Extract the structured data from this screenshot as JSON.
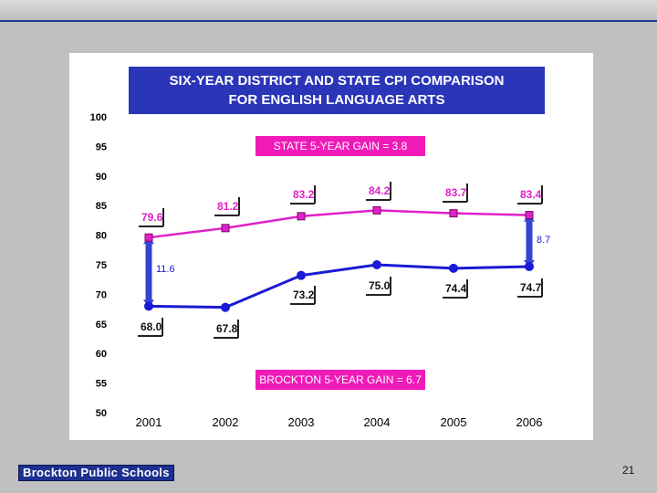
{
  "chart_data": {
    "type": "line",
    "title": "SIX-YEAR DISTRICT AND STATE CPI COMPARISON\nFOR ENGLISH LANGUAGE ARTS",
    "categories": [
      "2001",
      "2002",
      "2003",
      "2004",
      "2005",
      "2006"
    ],
    "ylim": [
      50,
      100
    ],
    "yticks": [
      "100",
      "95",
      "90",
      "85",
      "80",
      "75",
      "70",
      "65",
      "60",
      "55",
      "50"
    ],
    "series": [
      {
        "name": "STATE",
        "values": [
          79.6,
          81.2,
          83.2,
          84.2,
          83.7,
          83.4
        ],
        "color": "#e020c8",
        "labels": [
          "79.6",
          "81.2",
          "83.2",
          "84.2",
          "83.7",
          "83.4"
        ]
      },
      {
        "name": "BROCKTON",
        "values": [
          68.0,
          67.8,
          73.2,
          75.0,
          74.4,
          74.7
        ],
        "color": "#1a1ad6",
        "labels": [
          "68.0",
          "67.8",
          "73.2",
          "75.0",
          "74.4",
          "74.7"
        ]
      }
    ],
    "gap_2001": "11.6",
    "gap_2006": "8.7",
    "state_gain": "STATE 5-YEAR GAIN = 3.8",
    "brockton_gain": "BROCKTON 5-YEAR GAIN = 6.7",
    "colors": {
      "title_bg": "#2b35b8",
      "gain_bg": "#f01ab8",
      "label_text": "#e020c8",
      "blue_label": "#1a1ad6",
      "arrow": "#3344d0"
    }
  },
  "footer": {
    "logo_text": "Brockton Public Schools",
    "page_number": "21"
  }
}
